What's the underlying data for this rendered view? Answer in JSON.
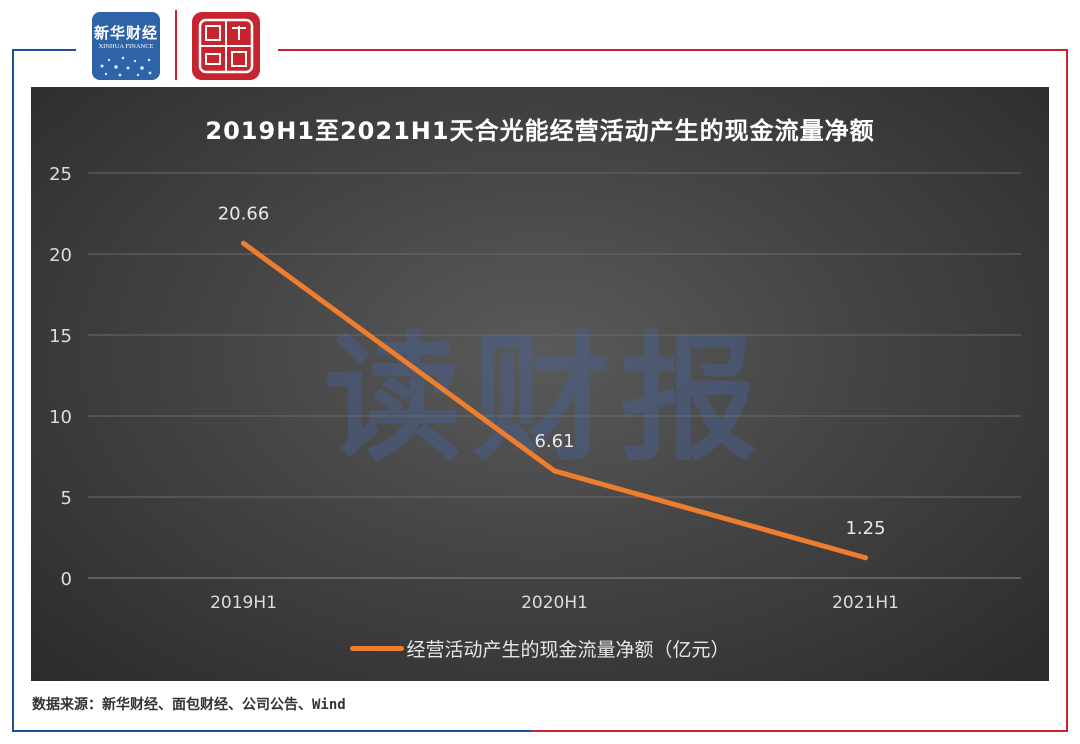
{
  "branding": {
    "xinhua_logo_cn": "新华财经",
    "xinhua_logo_en": "XINHUA FINANCE",
    "mianbao_logo_text": "面包财经",
    "watermark": "读财报"
  },
  "colors": {
    "frame_blue": "#1f4e9c",
    "frame_red": "#c8242f",
    "series_line": "#ee7d2e"
  },
  "chart_data": {
    "type": "line",
    "title": "2019H1至2021H1天合光能经营活动产生的现金流量净额",
    "categories": [
      "2019H1",
      "2020H1",
      "2021H1"
    ],
    "series": [
      {
        "name": "经营活动产生的现金流量净额（亿元）",
        "values": [
          20.66,
          6.61,
          1.25
        ],
        "data_labels": [
          "20.66",
          "6.61",
          "1.25"
        ]
      }
    ],
    "ylim": [
      0,
      25
    ],
    "yticks": [
      0,
      5,
      10,
      15,
      20,
      25
    ],
    "ytick_labels": [
      "0",
      "5",
      "10",
      "15",
      "20",
      "25"
    ],
    "grid": true,
    "legend_position": "bottom"
  },
  "footer": {
    "source": "数据来源：新华财经、面包财经、公司公告、Wind"
  }
}
